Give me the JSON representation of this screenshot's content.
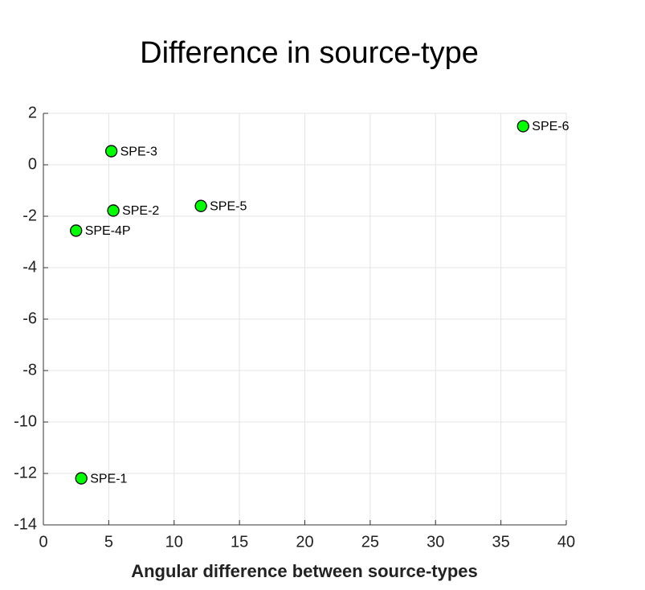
{
  "chart_data": {
    "type": "scatter",
    "title": "Difference in source-type",
    "x_label": "Angular difference between source-types",
    "x": [
      36.7,
      5.2,
      5.35,
      12.05,
      2.5,
      2.9
    ],
    "values": [
      1.5,
      0.53,
      -1.78,
      -1.6,
      -2.56,
      -12.19
    ],
    "point_labels": [
      "SPE-6",
      "SPE-3",
      "SPE-2",
      "SPE-5",
      "SPE-4P",
      "SPE-1"
    ],
    "color": "#00ff00",
    "xlim": [
      0,
      40
    ],
    "xticks": [
      0,
      5,
      10,
      15,
      20,
      25,
      30,
      35,
      40
    ],
    "ylim": [
      -14,
      2
    ],
    "yticks": [
      -14,
      -12,
      -10,
      -8,
      -6,
      -4,
      -2,
      0,
      2
    ],
    "grid": true
  }
}
